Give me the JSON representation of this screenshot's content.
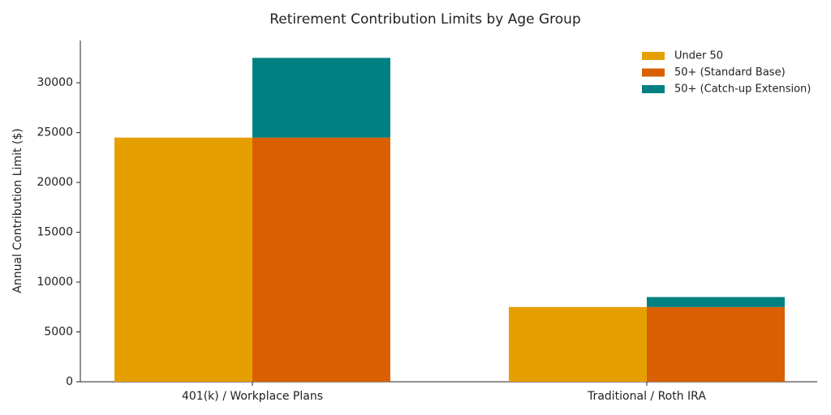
{
  "chart_data": {
    "type": "bar",
    "title": "Retirement Contribution Limits by Age Group",
    "y_label": "Annual Contribution Limit ($)",
    "categories": [
      "401(k) / Workplace Plans",
      "Traditional / Roth IRA"
    ],
    "series": [
      {
        "name": "Under 50",
        "color": "#e69f00",
        "values": [
          24500,
          7500
        ]
      },
      {
        "name": "50+ (Standard Base)",
        "color": "#d95f02",
        "values": [
          24500,
          7500
        ]
      },
      {
        "name": "50+ (Catch-up Extension)",
        "color": "#008080",
        "values": [
          8000,
          1000
        ]
      }
    ],
    "ylim": [
      0,
      34240
    ],
    "yticks": [
      0,
      5000,
      10000,
      15000,
      20000,
      25000,
      30000
    ],
    "grid": false,
    "legend": "upper right"
  }
}
